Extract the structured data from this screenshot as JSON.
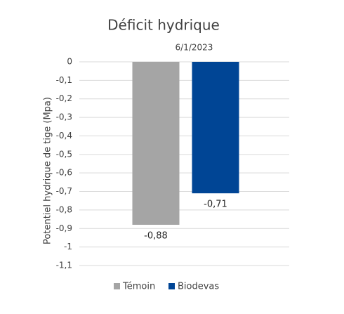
{
  "chart_data": {
    "type": "bar",
    "title": "Déficit hydrique",
    "y_label": "Potentiel hydrique de tige (Mpa)",
    "categories": [
      "6/1/2023"
    ],
    "series": [
      {
        "name": "Témoin",
        "color": "#a5a5a5",
        "values": [
          -0.88
        ],
        "value_labels": [
          "-0,88"
        ]
      },
      {
        "name": "Biodevas",
        "color": "#004595",
        "values": [
          -0.71
        ],
        "value_labels": [
          "-0,71"
        ]
      }
    ],
    "ylim": [
      -1.1,
      0
    ],
    "yticks": [
      0,
      {
        "value": -0.1,
        "label": "-0,1"
      },
      {
        "value": -0.2,
        "label": "-0,2"
      },
      {
        "value": -0.3,
        "label": "-0,3"
      },
      {
        "value": -0.4,
        "label": "-0,4"
      },
      {
        "value": -0.5,
        "label": "-0,5"
      },
      {
        "value": -0.6,
        "label": "-0,6"
      },
      {
        "value": -0.7,
        "label": "-0,7"
      },
      {
        "value": -0.8,
        "label": "-0,8"
      },
      {
        "value": -0.9,
        "label": "-0,9"
      },
      {
        "value": -1,
        "label": "-1"
      },
      {
        "value": -1.1,
        "label": "-1,1"
      }
    ],
    "grid": true,
    "legend": "bottom"
  }
}
